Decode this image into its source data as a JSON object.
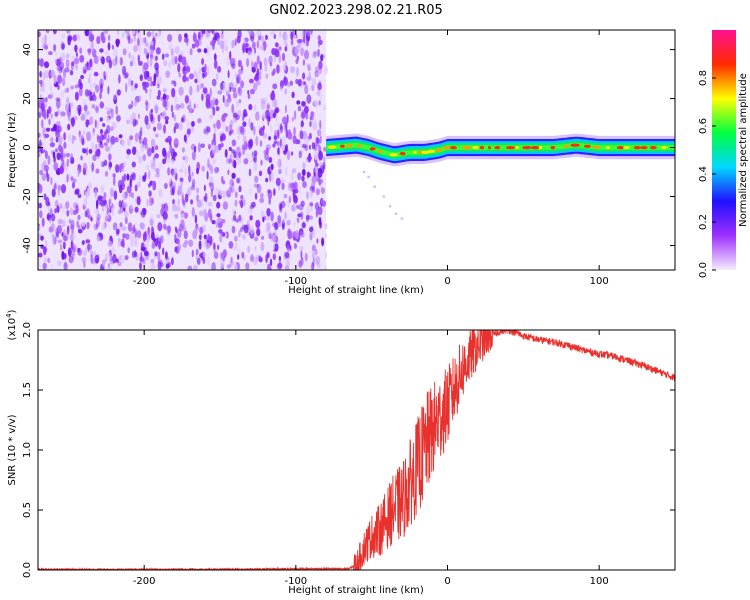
{
  "title": "GN02.2023.298.02.21.R05",
  "chart_data": [
    {
      "type": "heatmap",
      "xlabel": "Height of straight line (km)",
      "ylabel": "Frequency (Hz)",
      "xlim": [
        -270,
        150
      ],
      "ylim": [
        -50,
        48
      ],
      "xticks": [
        -200,
        -100,
        0,
        100
      ],
      "yticks": [
        -40,
        -20,
        0,
        20,
        40
      ],
      "grid": false,
      "noise_region_x": [
        -270,
        -80
      ],
      "signal_band": {
        "x_start": -80,
        "x_end": 150,
        "center_freq": [
          [
            -80,
            0
          ],
          [
            -70,
            0.5
          ],
          [
            -60,
            1
          ],
          [
            -52,
            0
          ],
          [
            -45,
            -1.5
          ],
          [
            -35,
            -3
          ],
          [
            -25,
            -2
          ],
          [
            -15,
            -2
          ],
          [
            -5,
            -1
          ],
          [
            0,
            0
          ],
          [
            10,
            0
          ],
          [
            30,
            0
          ],
          [
            50,
            0
          ],
          [
            70,
            0
          ],
          [
            85,
            1
          ],
          [
            100,
            0
          ],
          [
            120,
            0
          ],
          [
            150,
            0
          ]
        ],
        "half_width_hz": 2.5
      },
      "colorbar": {
        "label": "Normalized spectral amplitude",
        "range": [
          0,
          1
        ],
        "ticks": [
          "0.0",
          "0.2",
          "0.4",
          "0.6",
          "0.8"
        ],
        "colors": [
          "#f4ecff",
          "#9f30ff",
          "#2010ff",
          "#00d8ff",
          "#00ff40",
          "#ffff00",
          "#ff2a00",
          "#ff1090"
        ]
      }
    },
    {
      "type": "line",
      "xlabel": "Height of straight line (km)",
      "ylabel": "SNR (10 * v/v)",
      "y_multiplier": "(x10^4)",
      "xlim": [
        -270,
        150
      ],
      "ylim": [
        0,
        2.0
      ],
      "xticks": [
        -200,
        -100,
        0,
        100
      ],
      "yticks": [
        "0.0",
        "0.5",
        "1.0",
        "1.5",
        "2.0"
      ],
      "grid": false,
      "line_color": "#e8302c",
      "series": [
        {
          "x": [
            -270,
            -200,
            -150,
            -100,
            -65,
            -60,
            -55,
            -50,
            -45,
            -40,
            -35,
            -30,
            -25,
            -20,
            -15,
            -10,
            -5,
            0,
            5,
            10,
            15,
            20,
            25,
            30,
            35,
            40,
            45,
            50,
            60,
            70,
            80,
            90,
            100,
            110,
            120,
            130,
            140,
            150
          ],
          "values": [
            0.005,
            0.005,
            0.005,
            0.01,
            0.01,
            0.05,
            0.2,
            0.3,
            0.35,
            0.45,
            0.55,
            0.6,
            0.75,
            0.9,
            1.05,
            1.2,
            1.3,
            1.4,
            1.55,
            1.7,
            1.8,
            1.88,
            1.93,
            1.96,
            1.99,
            2.0,
            1.98,
            1.95,
            1.92,
            1.9,
            1.87,
            1.83,
            1.8,
            1.78,
            1.74,
            1.7,
            1.65,
            1.6
          ]
        }
      ]
    }
  ]
}
